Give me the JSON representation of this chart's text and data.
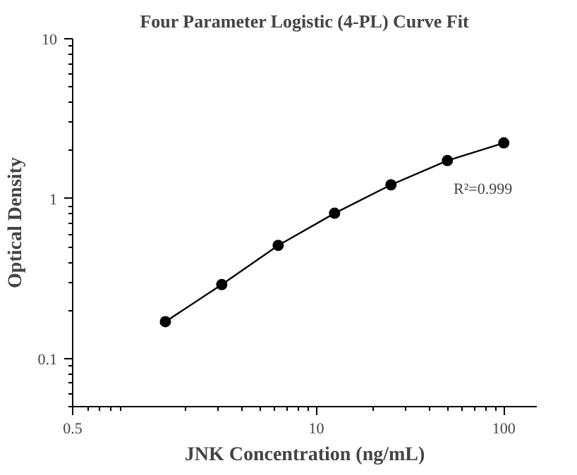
{
  "chart_data": {
    "type": "line",
    "title": "Four Parameter Logistic (4-PL) Curve Fit",
    "xlabel": "JNK Concentration (ng/mL)",
    "ylabel": "Optical Density",
    "x": [
      1.5625,
      3.125,
      6.25,
      12.5,
      25,
      50,
      100
    ],
    "series": [
      {
        "color": "#000000",
        "values": [
          0.17,
          0.29,
          0.51,
          0.81,
          1.22,
          1.73,
          2.23
        ]
      }
    ],
    "log": "xy",
    "xlim": [
      0.5,
      150
    ],
    "ylim": [
      0.05,
      10
    ],
    "xticks": [
      0.5,
      10,
      100
    ],
    "yticks": [
      0.1,
      1,
      10
    ],
    "marker": "circle",
    "line_style": "solid",
    "grid": false,
    "annotations": [
      "R²=0.999"
    ]
  }
}
